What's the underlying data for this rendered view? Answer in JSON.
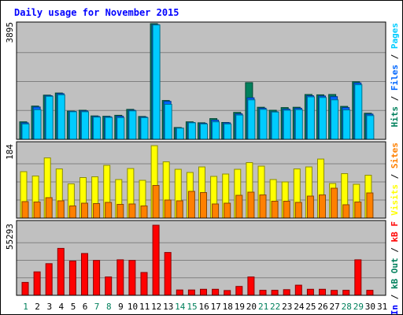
{
  "chart_data": {
    "type": "bar",
    "title": "Daily usage for November 2015",
    "categories": [
      "1",
      "2",
      "3",
      "4",
      "5",
      "6",
      "7",
      "8",
      "9",
      "10",
      "11",
      "12",
      "13",
      "14",
      "15",
      "16",
      "17",
      "18",
      "19",
      "20",
      "21",
      "22",
      "23",
      "24",
      "25",
      "26",
      "27",
      "28",
      "29",
      "30",
      "31"
    ],
    "weekend_days": [
      "1",
      "7",
      "8",
      "14",
      "15",
      "21",
      "22",
      "28",
      "29"
    ],
    "panels": [
      {
        "name": "top",
        "max_label": "3895",
        "ylim": [
          0,
          3895
        ],
        "legend": [
          {
            "text": "Hits",
            "color": "#00805c"
          },
          {
            "text": "Files",
            "color": "#0066ff"
          },
          {
            "text": "Pages",
            "color": "#00ccff"
          }
        ],
        "series": [
          {
            "name": "Hits",
            "color": "#00805c",
            "values": [
              590,
              1120,
              1490,
              1560,
              950,
              980,
              790,
              780,
              810,
              1010,
              770,
              3895,
              1310,
              400,
              590,
              560,
              700,
              570,
              910,
              1910,
              1080,
              980,
              1070,
              1080,
              1510,
              1500,
              1510,
              1110,
              1940,
              880,
              0
            ]
          },
          {
            "name": "Files",
            "color": "#0066ff",
            "values": [
              560,
              1090,
              1470,
              1540,
              940,
              960,
              770,
              760,
              780,
              980,
              750,
              3860,
              1280,
              380,
              570,
              540,
              650,
              560,
              860,
              1400,
              1050,
              930,
              1020,
              1050,
              1470,
              1460,
              1440,
              1070,
              1900,
              850,
              0
            ]
          },
          {
            "name": "Pages",
            "color": "#00ccff",
            "values": [
              520,
              1000,
              1450,
              1500,
              930,
              930,
              750,
              740,
              730,
              960,
              730,
              3850,
              1180,
              380,
              560,
              520,
              590,
              520,
              820,
              1330,
              1010,
              920,
              980,
              1000,
              1430,
              1410,
              1330,
              990,
              1840,
              800,
              0
            ]
          }
        ]
      },
      {
        "name": "middle",
        "max_label": "184",
        "ylim": [
          0,
          184
        ],
        "legend": [
          {
            "text": "Visits",
            "color": "#ffff00"
          },
          {
            "text": "Sites",
            "color": "#ff8000"
          }
        ],
        "series": [
          {
            "name": "Visits",
            "color": "#ffff00",
            "values": [
              118,
              107,
              153,
              125,
              87,
              103,
              105,
              134,
              98,
              126,
              96,
              184,
              143,
              124,
              116,
              130,
              106,
              112,
              124,
              141,
              132,
              98,
              92,
              125,
              130,
              150,
              88,
              113,
              86,
              109,
              0
            ]
          },
          {
            "name": "Sites",
            "color": "#ff8000",
            "values": [
              42,
              41,
              52,
              44,
              31,
              38,
              37,
              40,
              35,
              36,
              31,
              83,
              46,
              44,
              68,
              65,
              36,
              38,
              58,
              66,
              59,
              43,
              43,
              40,
              56,
              59,
              76,
              34,
              41,
              64,
              0
            ]
          }
        ]
      },
      {
        "name": "bottom",
        "max_label": "55293",
        "ylim": [
          0,
          55293
        ],
        "legend": [
          {
            "text": "kB In",
            "color": "#0000ff"
          },
          {
            "text": "kB Out",
            "color": "#00805c"
          },
          {
            "text": "kB F",
            "color": "#ff0000"
          }
        ],
        "series": [
          {
            "name": "kB F",
            "color": "#ff0000",
            "values": [
              10200,
              18500,
              25000,
              37000,
              27000,
              33000,
              27500,
              14500,
              28000,
              27500,
              18000,
              55293,
              33800,
              4200,
              4200,
              4800,
              4800,
              3800,
              7000,
              14500,
              4000,
              4000,
              4500,
              8000,
              4800,
              4800,
              3900,
              4000,
              28000,
              4000,
              0
            ]
          }
        ]
      }
    ],
    "colors": {
      "background": "#ffffff",
      "plot": "#c0c0c0",
      "frame": "#000000",
      "gridline": "#808080",
      "day_weekday": "#000000",
      "day_weekend": "#00805c"
    }
  }
}
